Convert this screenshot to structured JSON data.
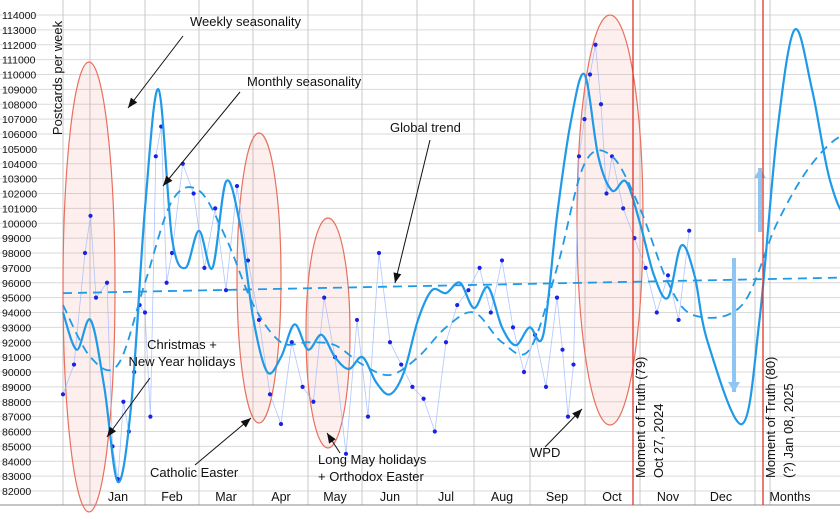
{
  "chart_data": {
    "type": "line",
    "title": "",
    "ylabel": "Postcards per week",
    "ylim": [
      81500,
      114200
    ],
    "yticks": [
      82000,
      83000,
      84000,
      85000,
      86000,
      87000,
      88000,
      89000,
      90000,
      91000,
      92000,
      93000,
      94000,
      95000,
      96000,
      97000,
      98000,
      99000,
      100000,
      101000,
      102000,
      103000,
      104000,
      105000,
      106000,
      107000,
      108000,
      109000,
      110000,
      111000,
      112000,
      113000,
      114000
    ],
    "month_labels": [
      "Jan",
      "Feb",
      "Mar",
      "Apr",
      "May",
      "Jun",
      "Jul",
      "Aug",
      "Sep",
      "Oct",
      "Nov",
      "Dec",
      "Months"
    ],
    "grid": true,
    "series": [
      {
        "style": "points",
        "color": "#1a22e6",
        "x": [
          0.0,
          0.2,
          0.4,
          0.5,
          0.6,
          0.8,
          0.9,
          1.0,
          1.1,
          1.2,
          1.3,
          1.4,
          1.5,
          1.6,
          1.7,
          1.8,
          1.9,
          2.0,
          2.2,
          2.4,
          2.6,
          2.8,
          3.0,
          3.2,
          3.4,
          3.6,
          3.8,
          4.0,
          4.2,
          4.4,
          4.6,
          4.8,
          5.0,
          5.2,
          5.4,
          5.6,
          5.8,
          6.0,
          6.2,
          6.4,
          6.6,
          6.8,
          7.0,
          7.2,
          7.4,
          7.6,
          7.8,
          8.0,
          8.2,
          8.4,
          8.6,
          8.8,
          9.0,
          9.1,
          9.2,
          9.3,
          9.4,
          9.5,
          9.6,
          9.7,
          9.8,
          9.9,
          10.0,
          10.2,
          10.4,
          10.6,
          10.8,
          11.0,
          11.2,
          11.4
        ],
        "values": [
          88500,
          90500,
          98000,
          100500,
          95000,
          96000,
          85000,
          82800,
          88000,
          86000,
          90000,
          94500,
          94000,
          87000,
          104500,
          106500,
          96000,
          98000,
          104000,
          102000,
          97000,
          101000,
          95500,
          102500,
          97500,
          93500,
          88500,
          86500,
          92000,
          89000,
          88000,
          95000,
          91000,
          84500,
          93500,
          87000,
          98000,
          92000,
          90500,
          89000,
          88200,
          86000,
          92000,
          94500,
          95500,
          97000,
          94000,
          97500,
          93000,
          90000,
          92500,
          89000,
          95000,
          91500,
          87000,
          90500,
          104500,
          107000,
          110000,
          112000,
          108000,
          102000,
          104500,
          101000,
          99000,
          97000,
          94000,
          96500,
          93500,
          99500
        ]
      },
      {
        "name": "",
        "style": "solid",
        "color": "#1f9ae8",
        "x": [
          0.0,
          0.25,
          0.5,
          0.75,
          1.0,
          1.25,
          1.5,
          1.75,
          2.0,
          2.25,
          2.5,
          2.75,
          3.0,
          3.25,
          3.5,
          3.75,
          4.0,
          4.25,
          4.5,
          4.75,
          5.0,
          5.25,
          5.5,
          5.75,
          6.0,
          6.25,
          6.5,
          6.75,
          7.0,
          7.25,
          7.5,
          7.75,
          8.0,
          8.25,
          8.5,
          8.75,
          9.0,
          9.25,
          9.5,
          9.75,
          10.0,
          10.25,
          10.5,
          10.75,
          11.0,
          11.25,
          11.5,
          11.75,
          12.0,
          12.25,
          12.5,
          12.75,
          13.0,
          13.25,
          13.5,
          13.75,
          14.0
        ],
        "values": [
          94000,
          91500,
          93500,
          89000,
          82600,
          88000,
          101000,
          109000,
          99000,
          97000,
          99500,
          97000,
          102800,
          100000,
          93500,
          90000,
          91000,
          93200,
          91500,
          92500,
          91000,
          90200,
          91000,
          89300,
          88500,
          90000,
          93500,
          95500,
          95300,
          96000,
          94300,
          95700,
          93000,
          91800,
          93000,
          92500,
          100500,
          106800,
          110000,
          104500,
          102200,
          102800,
          100000,
          96500,
          95000,
          98500,
          96500,
          92000,
          86500,
          93500,
          106000,
          113000,
          109000,
          103000,
          100500,
          103000,
          103500
        ]
      },
      {
        "name": "",
        "style": "dashed",
        "color": "#1f9ae8",
        "x": [
          0.0,
          0.5,
          1.0,
          1.5,
          2.0,
          2.5,
          3.0,
          3.5,
          4.0,
          4.5,
          5.0,
          5.5,
          6.0,
          6.5,
          7.0,
          7.5,
          8.0,
          8.5,
          9.0,
          9.5,
          10.0,
          10.5,
          11.0,
          11.5,
          12.0,
          12.5,
          13.0,
          13.5,
          14.0
        ],
        "values": [
          94500,
          91000,
          90500,
          96000,
          101500,
          102200,
          99000,
          94500,
          92000,
          92000,
          91800,
          90500,
          89800,
          91000,
          93000,
          94000,
          92000,
          91500,
          97000,
          104000,
          104500,
          101000,
          96000,
          93800,
          94500,
          100000,
          104000,
          106000,
          105000
        ]
      },
      {
        "name": "",
        "style": "dashed",
        "color": "#1f9ae8",
        "x": [
          0.0,
          14.0
        ],
        "values": [
          95300,
          96400
        ]
      }
    ],
    "vlines": [
      {
        "label": "Moment of Truth (79)\nOct 27, 2024",
        "x": 9.75
      },
      {
        "label": "Moment of Truth (80)\n(?) Jan 08, 2025",
        "x": 12.3
      }
    ],
    "annotations": [
      "Weekly seasonality",
      "Monthly seasonality",
      "Global trend",
      "Christmas +\nNew Year holidays",
      "Catholic Easter",
      "Long May holidays\n+ Orthodox Easter",
      "WPD"
    ],
    "highlights": [
      "Christmas + New Year holidays",
      "Catholic Easter",
      "Long May holidays + Orthodox Easter",
      "WPD"
    ]
  }
}
